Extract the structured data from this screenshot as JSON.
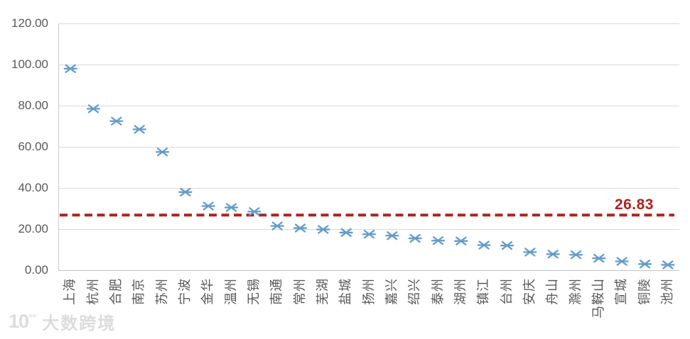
{
  "chart_data": {
    "type": "scatter",
    "title": "",
    "xlabel": "",
    "ylabel": "",
    "categories": [
      "上海",
      "杭州",
      "合肥",
      "南京",
      "苏州",
      "宁波",
      "金华",
      "温州",
      "无锡",
      "南通",
      "常州",
      "芜湖",
      "盐城",
      "扬州",
      "嘉兴",
      "绍兴",
      "泰州",
      "湖州",
      "镇江",
      "台州",
      "安庆",
      "舟山",
      "滁州",
      "马鞍山",
      "宣城",
      "铜陵",
      "池州"
    ],
    "values": [
      98.0,
      78.5,
      72.5,
      68.5,
      57.5,
      38.0,
      31.2,
      30.5,
      28.5,
      21.5,
      20.5,
      19.8,
      18.3,
      17.5,
      16.8,
      15.5,
      14.4,
      14.2,
      12.2,
      12.0,
      8.8,
      7.8,
      7.5,
      5.8,
      4.3,
      3.0,
      2.6
    ],
    "ylim": [
      0,
      120
    ],
    "y_ticks": [
      {
        "value": 120,
        "label": "120.00"
      },
      {
        "value": 100,
        "label": "100.00"
      },
      {
        "value": 80,
        "label": "80.00"
      },
      {
        "value": 60,
        "label": "60.00"
      },
      {
        "value": 40,
        "label": "40.00"
      },
      {
        "value": 20,
        "label": "20.00"
      },
      {
        "value": 0,
        "label": "0.00"
      }
    ],
    "ref_line": {
      "value": 26.83,
      "label": "26.83",
      "style": "dashed"
    },
    "grid": true,
    "legend": "none",
    "marker": "asterisk"
  },
  "colors": {
    "marker_blue": "#639cca",
    "ref_red": "#ae241f",
    "grid_gray": "#dadada",
    "tick_gray": "#595959",
    "watermark_gray": "#dcdcdc"
  },
  "watermark": {
    "logo_main": "10",
    "logo_sup": "°°",
    "text": "大数跨境"
  }
}
